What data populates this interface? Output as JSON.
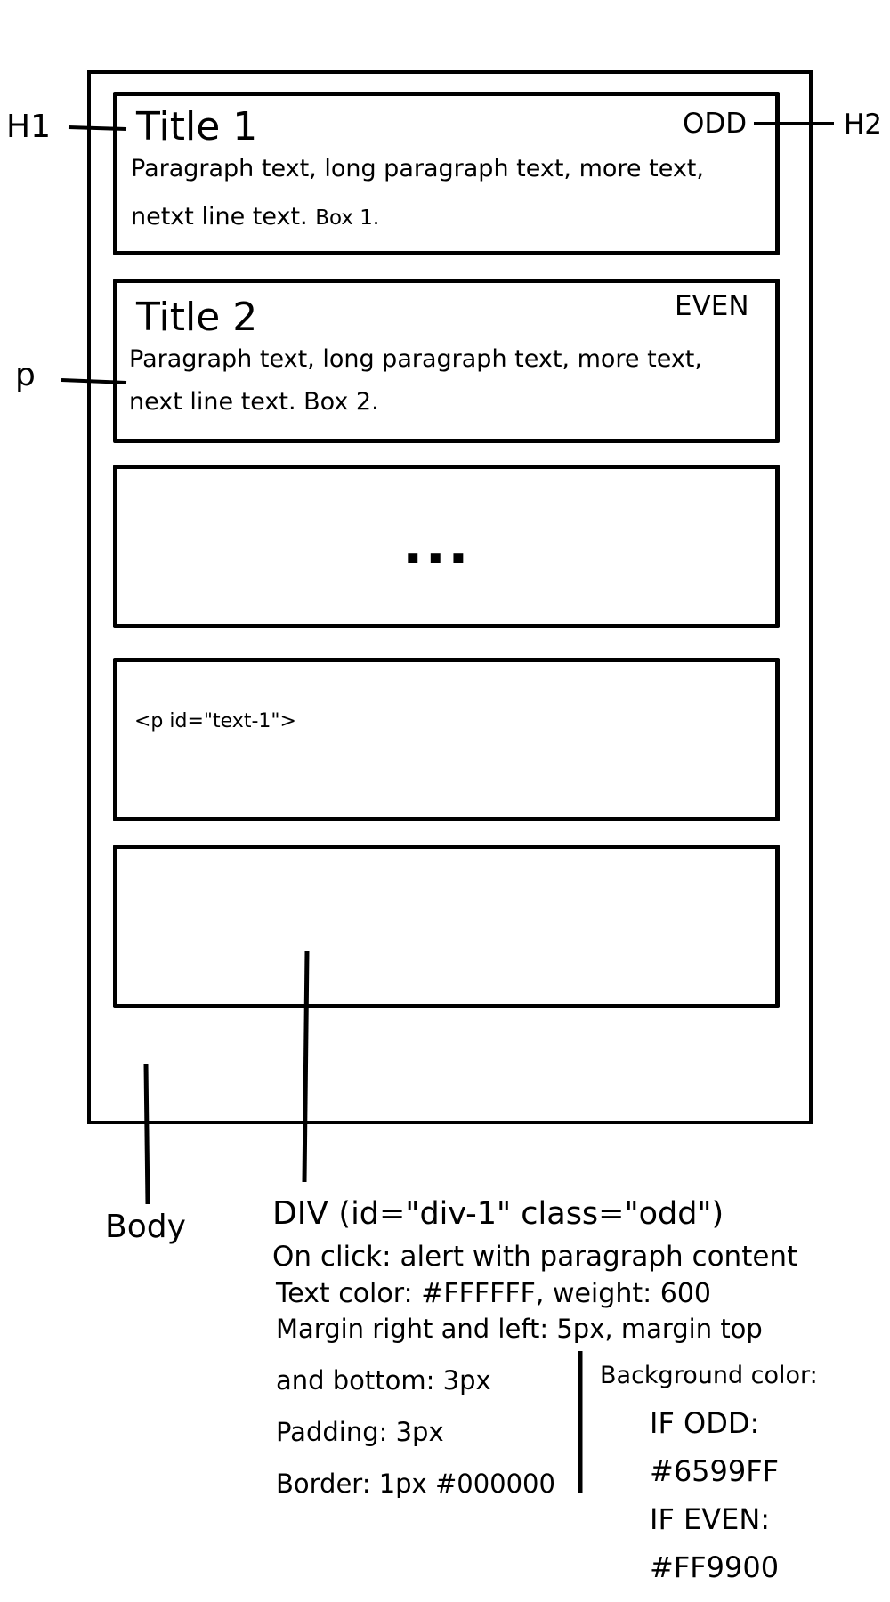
{
  "callouts": {
    "h1": "H1",
    "h2": "H2",
    "p": "p",
    "body": "Body"
  },
  "boxes": [
    {
      "title": "Title 1",
      "corner": "ODD",
      "para_line1": "Paragraph text, long paragraph text, more text,",
      "para_line2": "netxt line text.",
      "para_small": "Box 1."
    },
    {
      "title": "Title 2",
      "corner": "EVEN",
      "para_line1": "Paragraph text, long paragraph text, more text,",
      "para_line2": "next line text. Box 2."
    },
    {
      "ellipsis": "..."
    },
    {
      "code": "<p id=\"text-1\">"
    },
    {}
  ],
  "spec": {
    "div_label": "DIV",
    "div_attrs": "(id=\"div-1\" class=\"odd\")",
    "lines": [
      "On click: alert with paragraph content",
      "Text color: #FFFFFF, weight: 600",
      "Margin right and left: 5px, margin top",
      "and bottom: 3px",
      "Padding: 3px",
      "Border: 1px #000000"
    ],
    "background": {
      "label": "Background color:",
      "odd_label": "IF ODD:",
      "odd_color": "#6599FF",
      "even_label": "IF EVEN:",
      "even_color": "#FF9900"
    }
  }
}
